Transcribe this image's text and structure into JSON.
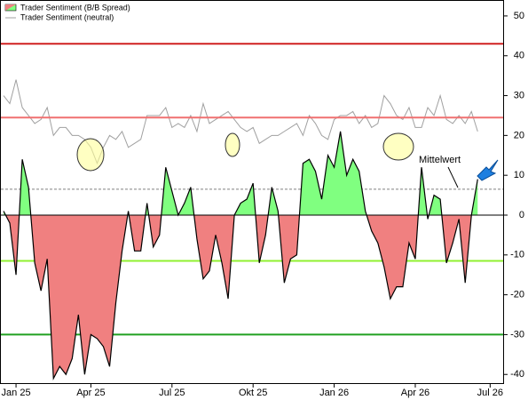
{
  "chart_data": {
    "type": "area",
    "categories": [
      null,
      null,
      "Jan 25",
      null,
      null,
      null,
      null,
      null,
      null,
      null,
      null,
      null,
      null,
      null,
      "Apr 25",
      null,
      null,
      null,
      null,
      null,
      null,
      null,
      null,
      null,
      null,
      null,
      null,
      "Jul 25",
      null,
      null,
      null,
      null,
      null,
      null,
      null,
      null,
      null,
      null,
      null,
      null,
      "Okt 25",
      null,
      null,
      null,
      null,
      null,
      null,
      null,
      null,
      null,
      null,
      null,
      null,
      "Jan 26",
      null,
      null,
      null,
      null,
      null,
      null,
      null,
      null,
      null,
      null,
      null,
      null,
      "Apr 26",
      null,
      null,
      null,
      null,
      null,
      null,
      null,
      null,
      null,
      null,
      null,
      "Jul 26"
    ],
    "series": [
      {
        "name": "Trader Sentiment (B/B Spread)",
        "color": "#000000",
        "fill_positive": "#80ff80",
        "fill_negative": "#f08080",
        "values": [
          1,
          -2,
          -15,
          14,
          7,
          -12,
          -19,
          -11,
          -41,
          -38,
          -40,
          -36,
          -25,
          -40,
          -30,
          -31,
          -33,
          -38,
          -22,
          -9,
          1,
          -9,
          -9,
          3,
          -8,
          -5,
          12,
          6,
          0,
          3,
          7,
          -6,
          -16,
          -14,
          -5,
          -12,
          -21,
          0,
          3,
          4,
          8,
          -12,
          -5,
          7,
          1,
          -17,
          -11,
          -10,
          13,
          14,
          11,
          4,
          15,
          12,
          21,
          10,
          14,
          11,
          1,
          -4,
          -7,
          -13,
          -21,
          -18,
          -18,
          -7,
          -11,
          12,
          -1,
          5,
          4,
          -12,
          -7,
          -1,
          -17,
          0,
          9,
          null,
          null
        ]
      },
      {
        "name": "Trader Sentiment (neutral)",
        "color": "#a0a0a0",
        "values": [
          30,
          28,
          34,
          27,
          25,
          23,
          24,
          27,
          20,
          22,
          22,
          20,
          20,
          19,
          17,
          13,
          17,
          20,
          19,
          21,
          17,
          18,
          19,
          25,
          25,
          25,
          27,
          22,
          23,
          22,
          25,
          21,
          28,
          23,
          24,
          25,
          26,
          24,
          22,
          21,
          22,
          18,
          19,
          20,
          20,
          21,
          22,
          23,
          20,
          25,
          23,
          20,
          19,
          24,
          25,
          25,
          26,
          23,
          25,
          22,
          23,
          30,
          28,
          25,
          24,
          27,
          22,
          22,
          27,
          25,
          30,
          24,
          23,
          25,
          23,
          26,
          21,
          null,
          null
        ]
      }
    ],
    "reference_lines": [
      {
        "value": 43,
        "color": "#d02020",
        "width": 2
      },
      {
        "value": 24.5,
        "color": "#f07070",
        "width": 2
      },
      {
        "value": 6.5,
        "color": "#808080",
        "width": 1,
        "dashed": true
      },
      {
        "value": -11.5,
        "color": "#90f030",
        "width": 2
      },
      {
        "value": -30,
        "color": "#20a020",
        "width": 2
      }
    ],
    "annotation": "Mittelwert",
    "ylim": [
      -42.4,
      54
    ],
    "yticks": [
      50,
      40,
      30,
      20,
      10,
      0,
      -10,
      -20,
      -30,
      -40
    ]
  }
}
